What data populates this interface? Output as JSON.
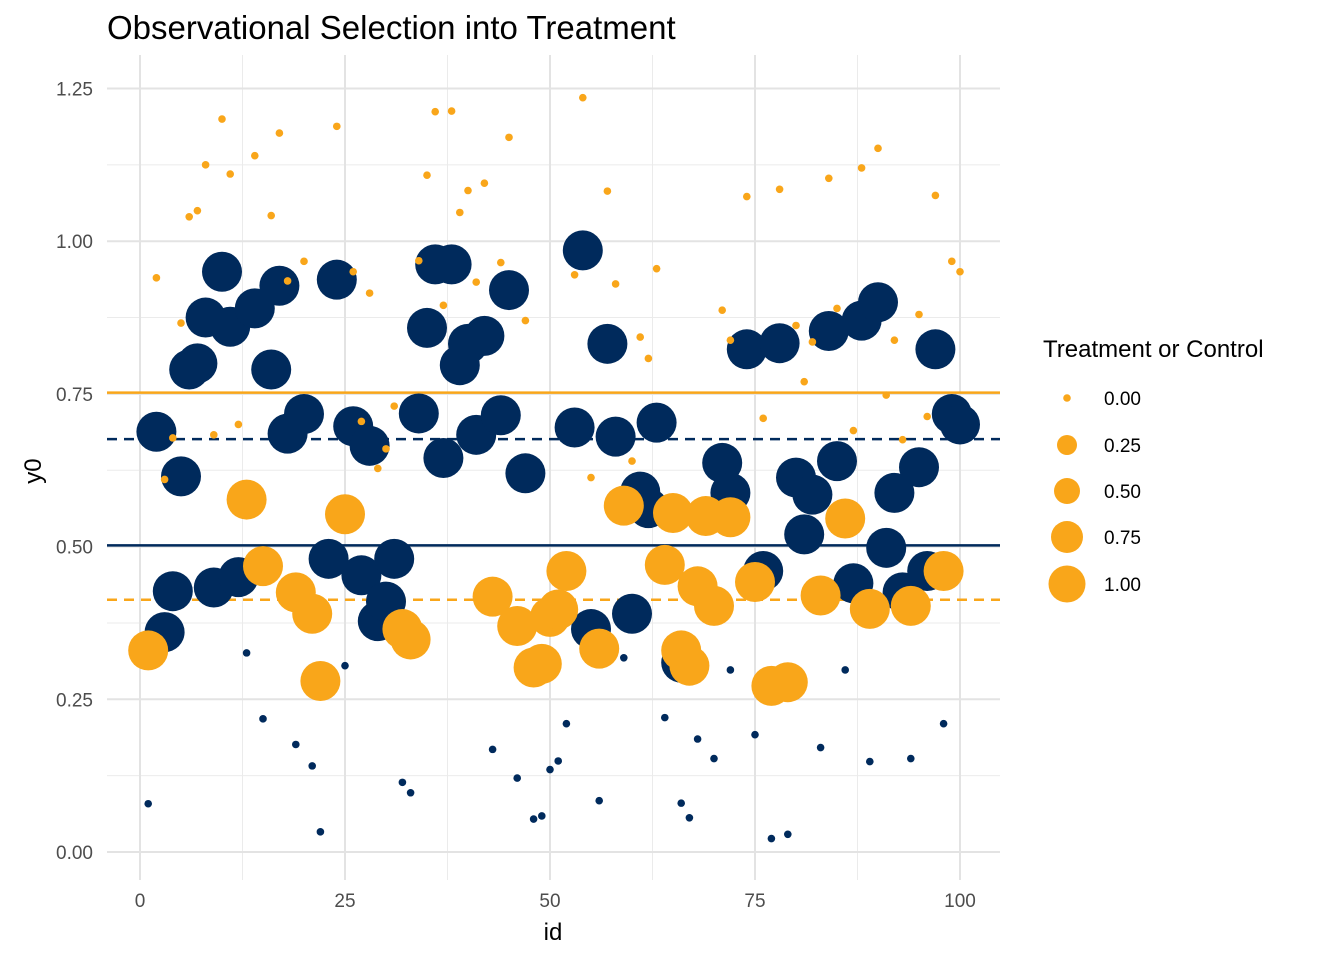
{
  "chart_data": {
    "type": "scatter",
    "title": "Observational Selection into Treatment",
    "xlabel": "id",
    "ylabel": "y0",
    "xlim": [
      -4,
      105
    ],
    "ylim": [
      -0.025,
      1.255
    ],
    "x_ticks": [
      0,
      25,
      50,
      75,
      100
    ],
    "x_tick_labels": [
      "0",
      "25",
      "50",
      "75",
      "100"
    ],
    "y_ticks": [
      0,
      0.25,
      0.5,
      0.75,
      1.0,
      1.25
    ],
    "y_tick_labels": [
      "0.00",
      "0.25",
      "0.50",
      "0.75",
      "1.00",
      "1.25"
    ],
    "grid": true,
    "legend": {
      "title": "Treatment or Control",
      "position": "right",
      "entries": [
        {
          "label": "0.00",
          "value": 0
        },
        {
          "label": "0.25",
          "value": 0.25
        },
        {
          "label": "0.50",
          "value": 0.5
        },
        {
          "label": "0.75",
          "value": 0.75
        },
        {
          "label": "1.00",
          "value": 1
        }
      ]
    },
    "colors": {
      "navy": "#002a5c",
      "orange": "#f9a61a"
    },
    "reference_lines": [
      {
        "y": 0.752,
        "color": "#f9a61a",
        "style": "solid"
      },
      {
        "y": 0.676,
        "color": "#002a5c",
        "style": "dashed"
      },
      {
        "y": 0.502,
        "color": "#002a5c",
        "style": "solid"
      },
      {
        "y": 0.413,
        "color": "#f9a61a",
        "style": "dashed"
      }
    ],
    "series": [
      {
        "color": "#002a5c",
        "size_value": 1,
        "points": [
          [
            2,
            0.688
          ],
          [
            3,
            0.36
          ],
          [
            4,
            0.427
          ],
          [
            5,
            0.615
          ],
          [
            6,
            0.79
          ],
          [
            7,
            0.8
          ],
          [
            8,
            0.875
          ],
          [
            9,
            0.433
          ],
          [
            10,
            0.95
          ],
          [
            11,
            0.86
          ],
          [
            12,
            0.45
          ],
          [
            14,
            0.89
          ],
          [
            16,
            0.79
          ],
          [
            17,
            0.927
          ],
          [
            18,
            0.685
          ],
          [
            20,
            0.717
          ],
          [
            23,
            0.48
          ],
          [
            24,
            0.937
          ],
          [
            26,
            0.697
          ],
          [
            27,
            0.453
          ],
          [
            28,
            0.665
          ],
          [
            29,
            0.378
          ],
          [
            30,
            0.41
          ],
          [
            31,
            0.48
          ],
          [
            34,
            0.718
          ],
          [
            35,
            0.858
          ],
          [
            36,
            0.962
          ],
          [
            37,
            0.645
          ],
          [
            38,
            0.962
          ],
          [
            39,
            0.797
          ],
          [
            40,
            0.832
          ],
          [
            41,
            0.683
          ],
          [
            42,
            0.845
          ],
          [
            44,
            0.715
          ],
          [
            45,
            0.92
          ],
          [
            47,
            0.62
          ],
          [
            53,
            0.695
          ],
          [
            54,
            0.985
          ],
          [
            55,
            0.365
          ],
          [
            57,
            0.832
          ],
          [
            58,
            0.68
          ],
          [
            60,
            0.39
          ],
          [
            61,
            0.59
          ],
          [
            62,
            0.563
          ],
          [
            63,
            0.703
          ],
          [
            66,
            0.31
          ],
          [
            71,
            0.637
          ],
          [
            72,
            0.588
          ],
          [
            74,
            0.823
          ],
          [
            76,
            0.46
          ],
          [
            78,
            0.833
          ],
          [
            80,
            0.613
          ],
          [
            81,
            0.52
          ],
          [
            82,
            0.585
          ],
          [
            84,
            0.853
          ],
          [
            85,
            0.64
          ],
          [
            87,
            0.44
          ],
          [
            88,
            0.87
          ],
          [
            90,
            0.9
          ],
          [
            91,
            0.498
          ],
          [
            92,
            0.588
          ],
          [
            93,
            0.425
          ],
          [
            95,
            0.63
          ],
          [
            96,
            0.46
          ],
          [
            97,
            0.823
          ],
          [
            99,
            0.717
          ],
          [
            100,
            0.7
          ]
        ]
      },
      {
        "color": "#002a5c",
        "size_value": 0,
        "points": [
          [
            1,
            0.079
          ],
          [
            13,
            0.326
          ],
          [
            15,
            0.218
          ],
          [
            19,
            0.176
          ],
          [
            21,
            0.141
          ],
          [
            22,
            0.033
          ],
          [
            25,
            0.305
          ],
          [
            32,
            0.114
          ],
          [
            33,
            0.097
          ],
          [
            43,
            0.168
          ],
          [
            46,
            0.121
          ],
          [
            48,
            0.054
          ],
          [
            49,
            0.059
          ],
          [
            50,
            0.135
          ],
          [
            51,
            0.149
          ],
          [
            52,
            0.21
          ],
          [
            56,
            0.084
          ],
          [
            59,
            0.318
          ],
          [
            64,
            0.22
          ],
          [
            66,
            0.08
          ],
          [
            67,
            0.056
          ],
          [
            68,
            0.185
          ],
          [
            70,
            0.153
          ],
          [
            72,
            0.298
          ],
          [
            75,
            0.192
          ],
          [
            77,
            0.022
          ],
          [
            79,
            0.029
          ],
          [
            83,
            0.171
          ],
          [
            86,
            0.298
          ],
          [
            89,
            0.148
          ],
          [
            94,
            0.153
          ],
          [
            98,
            0.21
          ]
        ]
      },
      {
        "color": "#f9a61a",
        "size_value": 1,
        "points": [
          [
            1,
            0.33
          ],
          [
            13,
            0.577
          ],
          [
            15,
            0.468
          ],
          [
            19,
            0.425
          ],
          [
            21,
            0.39
          ],
          [
            22,
            0.28
          ],
          [
            25,
            0.553
          ],
          [
            32,
            0.365
          ],
          [
            33,
            0.348
          ],
          [
            43,
            0.418
          ],
          [
            46,
            0.37
          ],
          [
            48,
            0.302
          ],
          [
            49,
            0.308
          ],
          [
            50,
            0.385
          ],
          [
            51,
            0.397
          ],
          [
            52,
            0.46
          ],
          [
            56,
            0.333
          ],
          [
            59,
            0.567
          ],
          [
            64,
            0.47
          ],
          [
            65,
            0.555
          ],
          [
            66,
            0.33
          ],
          [
            67,
            0.305
          ],
          [
            68,
            0.435
          ],
          [
            69,
            0.55
          ],
          [
            70,
            0.403
          ],
          [
            72,
            0.548
          ],
          [
            75,
            0.442
          ],
          [
            77,
            0.272
          ],
          [
            79,
            0.278
          ],
          [
            83,
            0.42
          ],
          [
            86,
            0.546
          ],
          [
            89,
            0.398
          ],
          [
            94,
            0.403
          ],
          [
            98,
            0.46
          ]
        ]
      },
      {
        "color": "#f9a61a",
        "size_value": 0,
        "points": [
          [
            2,
            0.94
          ],
          [
            3,
            0.61
          ],
          [
            4,
            0.678
          ],
          [
            5,
            0.866
          ],
          [
            6,
            1.04
          ],
          [
            7,
            1.05
          ],
          [
            8,
            1.125
          ],
          [
            9,
            0.683
          ],
          [
            10,
            1.2
          ],
          [
            11,
            1.11
          ],
          [
            12,
            0.7
          ],
          [
            14,
            1.14
          ],
          [
            16,
            1.042
          ],
          [
            17,
            1.177
          ],
          [
            18,
            0.935
          ],
          [
            20,
            0.967
          ],
          [
            24,
            1.188
          ],
          [
            26,
            0.95
          ],
          [
            27,
            0.705
          ],
          [
            28,
            0.915
          ],
          [
            29,
            0.628
          ],
          [
            30,
            0.66
          ],
          [
            31,
            0.73
          ],
          [
            34,
            0.968
          ],
          [
            35,
            1.108
          ],
          [
            36,
            1.212
          ],
          [
            37,
            0.895
          ],
          [
            38,
            1.213
          ],
          [
            39,
            1.047
          ],
          [
            40,
            1.083
          ],
          [
            41,
            0.933
          ],
          [
            42,
            1.095
          ],
          [
            44,
            0.965
          ],
          [
            45,
            1.17
          ],
          [
            47,
            0.87
          ],
          [
            53,
            0.945
          ],
          [
            54,
            1.235
          ],
          [
            55,
            0.613
          ],
          [
            57,
            1.082
          ],
          [
            58,
            0.93
          ],
          [
            60,
            0.64
          ],
          [
            61,
            0.843
          ],
          [
            62,
            0.808
          ],
          [
            63,
            0.955
          ],
          [
            71,
            0.887
          ],
          [
            72,
            0.838
          ],
          [
            74,
            1.073
          ],
          [
            76,
            0.71
          ],
          [
            78,
            1.085
          ],
          [
            80,
            0.862
          ],
          [
            81,
            0.77
          ],
          [
            82,
            0.835
          ],
          [
            84,
            1.103
          ],
          [
            85,
            0.89
          ],
          [
            87,
            0.69
          ],
          [
            88,
            1.12
          ],
          [
            90,
            1.152
          ],
          [
            91,
            0.748
          ],
          [
            92,
            0.838
          ],
          [
            93,
            0.675
          ],
          [
            95,
            0.88
          ],
          [
            96,
            0.713
          ],
          [
            97,
            1.075
          ],
          [
            99,
            0.967
          ],
          [
            100,
            0.95
          ]
        ]
      }
    ]
  }
}
